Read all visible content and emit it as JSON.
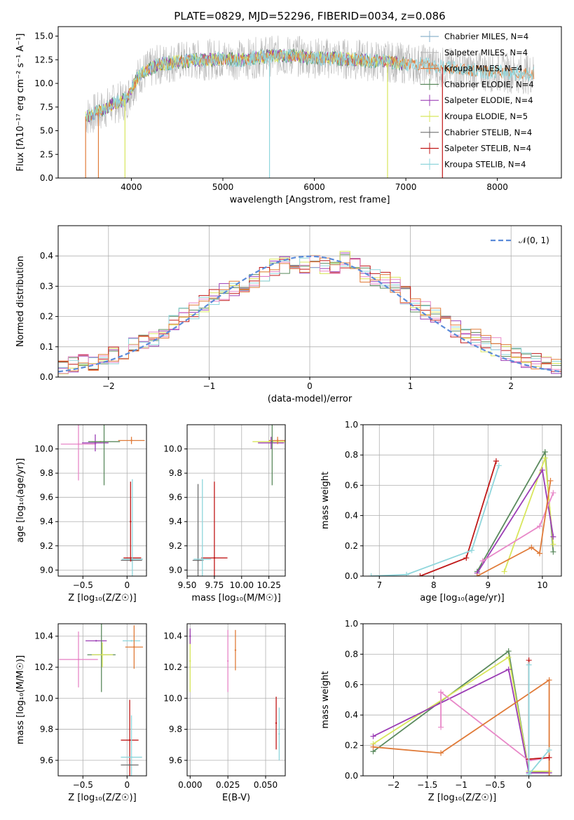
{
  "figure_title": "PLATE=0829, MJD=52296, FIBERID=0034, z=0.086",
  "colors": {
    "chabrier_miles": "#8eb3cc",
    "salpeter_miles": "#b8b8b8",
    "kroupa_miles": "#e07b39",
    "chabrier_elodie": "#5b8a5e",
    "salpeter_elodie": "#9b3db5",
    "kroupa_elodie": "#d8e65c",
    "chabrier_stelib": "#6e6e6e",
    "salpeter_stelib": "#c01818",
    "kroupa_stelib": "#8fd6dc",
    "salpeter_stelib_alt": "#e888c8",
    "gaussian": "#5b8bd9",
    "grid": "#b0b0b0"
  },
  "chart_data": [
    {
      "type": "line",
      "title": "PLATE=0829, MJD=52296, FIBERID=0034, z=0.086",
      "xlabel": "wavelength [Angstrom, rest frame]",
      "ylabel": "Flux [fλ10⁻¹⁷ erg cm⁻² s⁻¹ A⁻¹]",
      "xlim": [
        3200,
        8700
      ],
      "ylim": [
        0,
        16
      ],
      "xticks": [
        4000,
        5000,
        6000,
        7000,
        8000
      ],
      "yticks": [
        0.0,
        2.5,
        5.0,
        7.5,
        10.0,
        12.5,
        15.0
      ],
      "grid": false,
      "legend": "upper-right",
      "legend_entries": [
        "Chabrier MILES, N_SSP=4",
        "Salpeter MILES, N_SSP=4",
        "Kroupa MILES, N_SSP=4",
        "Chabrier ELODIE, N_SSP=4",
        "Salpeter ELODIE, N_SSP=4",
        "Kroupa ELODIE, N_SSP=5",
        "Chabrier STELIB, N_SSP=4",
        "Salpeter STELIB, N_SSP=4",
        "Kroupa STELIB, N_SSP=4"
      ],
      "spectrum_continuum": {
        "x": [
          3500,
          3650,
          3800,
          3950,
          4000,
          4100,
          4300,
          4500,
          4800,
          5000,
          5200,
          5500,
          5800,
          6000,
          6300,
          6600,
          6800,
          7000,
          7200,
          7400,
          7600,
          7800,
          8000,
          8200,
          8400
        ],
        "y": [
          6.5,
          7.0,
          7.8,
          8.3,
          9.5,
          11.0,
          12.0,
          12.3,
          12.5,
          12.6,
          12.5,
          12.9,
          12.9,
          12.7,
          12.6,
          12.4,
          12.3,
          12.1,
          12.0,
          11.7,
          11.5,
          11.3,
          11.2,
          11.1,
          11.0
        ]
      },
      "spikes_to_zero": [
        3500,
        3640,
        3930,
        5510,
        6800,
        7400
      ]
    },
    {
      "type": "bar",
      "xlabel": "(data-model)/error",
      "ylabel": "Normed distribution",
      "xlim": [
        -2.5,
        2.5
      ],
      "ylim": [
        0,
        0.5
      ],
      "xticks": [
        -2,
        -1,
        0,
        1,
        2
      ],
      "yticks": [
        0.0,
        0.1,
        0.2,
        0.3,
        0.4
      ],
      "grid": true,
      "legend": "upper-right",
      "legend_entries": [
        "𝒩(0, 1)"
      ],
      "bin_width": 0.1,
      "series_note": "step histograms, one per model",
      "histogram_bin_centers": [
        -2.45,
        -2.35,
        -2.25,
        -2.15,
        -2.05,
        -1.95,
        -1.85,
        -1.75,
        -1.65,
        -1.55,
        -1.45,
        -1.35,
        -1.25,
        -1.15,
        -1.05,
        -0.95,
        -0.85,
        -0.75,
        -0.65,
        -0.55,
        -0.45,
        -0.35,
        -0.25,
        -0.15,
        -0.05,
        0.05,
        0.15,
        0.25,
        0.35,
        0.45,
        0.55,
        0.65,
        0.75,
        0.85,
        0.95,
        1.05,
        1.15,
        1.25,
        1.35,
        1.45,
        1.55,
        1.65,
        1.75,
        1.85,
        1.95,
        2.05,
        2.15,
        2.25,
        2.35,
        2.45
      ],
      "histogram_typical_values": [
        0.04,
        0.04,
        0.05,
        0.05,
        0.06,
        0.07,
        0.08,
        0.1,
        0.12,
        0.13,
        0.15,
        0.18,
        0.2,
        0.22,
        0.24,
        0.26,
        0.28,
        0.29,
        0.31,
        0.32,
        0.34,
        0.36,
        0.37,
        0.38,
        0.37,
        0.38,
        0.37,
        0.37,
        0.39,
        0.37,
        0.34,
        0.33,
        0.32,
        0.3,
        0.27,
        0.24,
        0.22,
        0.2,
        0.18,
        0.16,
        0.14,
        0.13,
        0.11,
        0.1,
        0.08,
        0.07,
        0.06,
        0.05,
        0.04,
        0.04
      ],
      "gaussian": {
        "mu": 0,
        "sigma": 1
      }
    },
    {
      "type": "scatter",
      "xlabel": "Z [log₁₀(Z/Z☉)]",
      "ylabel": "age [log₁₀(age/yr)]",
      "xlim": [
        -0.78,
        0.22
      ],
      "ylim": [
        8.95,
        10.2
      ],
      "xticks": [
        -0.5,
        0.0
      ],
      "yticks": [
        9.0,
        9.2,
        9.4,
        9.6,
        9.8,
        10.0
      ],
      "grid": true,
      "points": [
        {
          "x": -0.55,
          "y": 10.04,
          "xerr": 0.2,
          "yerr": 0.3,
          "c": "salpeter_stelib_alt"
        },
        {
          "x": -0.3,
          "y": 10.06,
          "xerr": 0.1,
          "yerr": 0.0,
          "c": "kroupa_elodie"
        },
        {
          "x": -0.36,
          "y": 10.05,
          "xerr": 0.15,
          "yerr": 0.07,
          "c": "salpeter_elodie"
        },
        {
          "x": -0.26,
          "y": 10.06,
          "xerr": 0.18,
          "yerr": 0.36,
          "c": "chabrier_elodie"
        },
        {
          "x": 0.05,
          "y": 10.07,
          "xerr": 0.15,
          "yerr": 0.03,
          "c": "kroupa_miles"
        },
        {
          "x": 0.06,
          "y": 9.1,
          "xerr": 0.1,
          "yerr": 0.0,
          "c": "salpeter_stelib"
        },
        {
          "x": 0.06,
          "y": 9.09,
          "xerr": 0.12,
          "yerr": 0.66,
          "c": "kroupa_stelib"
        },
        {
          "x": 0.05,
          "y": 9.08,
          "xerr": 0.12,
          "yerr": 0.0,
          "c": "chabrier_stelib"
        },
        {
          "x": 0.04,
          "y": 9.4,
          "xerr": 0.0,
          "yerr": 0.33,
          "c": "salpeter_stelib"
        }
      ]
    },
    {
      "type": "scatter",
      "xlabel": "mass [log₁₀(M/M☉)]",
      "ylabel": "",
      "xlim": [
        9.5,
        10.4
      ],
      "ylim": [
        8.95,
        10.2
      ],
      "xticks": [
        9.5,
        9.75,
        10.0,
        10.25
      ],
      "ytick_labels": [
        "9.0",
        "9.2",
        "9.4",
        "9.6",
        "9.8",
        "10.0"
      ],
      "xtick_labels": [
        "9.50",
        "9.75",
        "10.00",
        "10.25"
      ],
      "grid": true,
      "points": [
        {
          "x": 10.25,
          "y": 10.06,
          "xerr": 0.15,
          "yerr": 0.0,
          "c": "kroupa_elodie"
        },
        {
          "x": 10.27,
          "y": 10.05,
          "xerr": 0.12,
          "yerr": 0.05,
          "c": "salpeter_elodie"
        },
        {
          "x": 10.33,
          "y": 10.07,
          "xerr": 0.08,
          "yerr": 0.03,
          "c": "kroupa_miles"
        },
        {
          "x": 10.28,
          "y": 10.06,
          "xerr": 0.0,
          "yerr": 0.36,
          "c": "chabrier_elodie"
        },
        {
          "x": 9.6,
          "y": 9.08,
          "xerr": 0.05,
          "yerr": 0.63,
          "c": "chabrier_stelib"
        },
        {
          "x": 9.75,
          "y": 9.1,
          "xerr": 0.12,
          "yerr": 0.63,
          "c": "salpeter_stelib"
        },
        {
          "x": 9.64,
          "y": 9.09,
          "xerr": 0.08,
          "yerr": 0.66,
          "c": "kroupa_stelib"
        }
      ]
    },
    {
      "type": "line",
      "xlabel": "age [log₁₀(age/yr)]",
      "ylabel": "mass weight",
      "xlim": [
        6.7,
        10.35
      ],
      "ylim": [
        0,
        1.0
      ],
      "xticks": [
        7,
        8,
        9,
        10
      ],
      "yticks": [
        0.0,
        0.2,
        0.4,
        0.6,
        0.8,
        1.0
      ],
      "grid": true,
      "series": [
        {
          "c": "salpeter_stelib",
          "x": [
            7.75,
            8.6,
            9.15
          ],
          "y": [
            0.0,
            0.12,
            0.76
          ]
        },
        {
          "c": "kroupa_stelib",
          "x": [
            6.85,
            7.5,
            8.7,
            9.2
          ],
          "y": [
            0.0,
            0.01,
            0.17,
            0.73
          ]
        },
        {
          "c": "chabrier_elodie",
          "x": [
            8.8,
            10.05,
            10.2
          ],
          "y": [
            0.03,
            0.82,
            0.16
          ]
        },
        {
          "c": "kroupa_elodie",
          "x": [
            9.3,
            10.05,
            10.2
          ],
          "y": [
            0.03,
            0.78,
            0.21
          ]
        },
        {
          "c": "salpeter_elodie",
          "x": [
            8.8,
            10.0,
            10.2
          ],
          "y": [
            0.02,
            0.7,
            0.26
          ]
        },
        {
          "c": "salpeter_stelib_alt",
          "x": [
            8.9,
            9.95,
            10.2
          ],
          "y": [
            0.1,
            0.33,
            0.55
          ]
        },
        {
          "c": "kroupa_miles",
          "x": [
            8.8,
            9.8,
            9.95,
            10.15
          ],
          "y": [
            0.0,
            0.19,
            0.15,
            0.63
          ]
        }
      ]
    },
    {
      "type": "scatter",
      "xlabel": "Z [log₁₀(Z/Z☉)]",
      "ylabel": "mass [log₁₀(M/M☉)]",
      "xlim": [
        -0.78,
        0.22
      ],
      "ylim": [
        9.5,
        10.48
      ],
      "xticks": [
        -0.5,
        0.0
      ],
      "yticks": [
        9.6,
        9.8,
        10.0,
        10.2,
        10.4
      ],
      "grid": true,
      "points": [
        {
          "x": -0.55,
          "y": 10.25,
          "xerr": 0.22,
          "yerr": 0.18,
          "c": "salpeter_stelib_alt"
        },
        {
          "x": -0.35,
          "y": 10.37,
          "xerr": 0.12,
          "yerr": 0.0,
          "c": "salpeter_elodie"
        },
        {
          "x": -0.29,
          "y": 10.28,
          "xerr": 0.16,
          "yerr": 0.24,
          "c": "chabrier_elodie"
        },
        {
          "x": -0.28,
          "y": 10.28,
          "xerr": 0.12,
          "yerr": 0.08,
          "c": "kroupa_elodie"
        },
        {
          "x": 0.05,
          "y": 10.37,
          "xerr": 0.1,
          "yerr": 0.0,
          "c": "kroupa_stelib"
        },
        {
          "x": 0.08,
          "y": 10.33,
          "xerr": 0.1,
          "yerr": 0.14,
          "c": "kroupa_miles"
        },
        {
          "x": 0.03,
          "y": 9.73,
          "xerr": 0.1,
          "yerr": 0.26,
          "c": "salpeter_stelib"
        },
        {
          "x": 0.05,
          "y": 9.62,
          "xerr": 0.12,
          "yerr": 0.27,
          "c": "kroupa_stelib"
        },
        {
          "x": 0.03,
          "y": 9.57,
          "xerr": 0.1,
          "yerr": 0.0,
          "c": "chabrier_stelib"
        }
      ]
    },
    {
      "type": "scatter",
      "xlabel": "E(B-V)",
      "ylabel": "",
      "xlim": [
        -0.002,
        0.063
      ],
      "ylim": [
        9.5,
        10.48
      ],
      "xticks": [
        0.0,
        0.025,
        0.05
      ],
      "xtick_labels": [
        "0.000",
        "0.025",
        "0.050"
      ],
      "ytick_labels": [
        "9.6",
        "9.8",
        "10.0",
        "10.2",
        "10.4"
      ],
      "grid": true,
      "points": [
        {
          "x": 0.0,
          "y": 10.24,
          "yerr": 0.2,
          "c": "kroupa_elodie"
        },
        {
          "x": 0.0,
          "y": 10.4,
          "yerr": 0.05,
          "c": "salpeter_elodie"
        },
        {
          "x": 0.025,
          "y": 10.24,
          "yerr": 0.2,
          "c": "salpeter_stelib_alt"
        },
        {
          "x": 0.03,
          "y": 10.31,
          "yerr": 0.13,
          "c": "kroupa_miles"
        },
        {
          "x": 0.057,
          "y": 9.84,
          "yerr": 0.17,
          "c": "salpeter_stelib"
        },
        {
          "x": 0.059,
          "y": 9.77,
          "yerr": 0.17,
          "c": "kroupa_stelib"
        }
      ]
    },
    {
      "type": "line",
      "xlabel": "Z [log₁₀(Z/Z☉)]",
      "ylabel": "mass weight",
      "xlim": [
        -2.45,
        0.48
      ],
      "ylim": [
        0,
        1.0
      ],
      "xticks": [
        -2.0,
        -1.5,
        -1.0,
        -0.5,
        0.0
      ],
      "yticks": [
        0.0,
        0.2,
        0.4,
        0.6,
        0.8,
        1.0
      ],
      "grid": true,
      "series": [
        {
          "c": "chabrier_elodie",
          "x": [
            -2.3,
            -0.3,
            0.0,
            0.3
          ],
          "y": [
            0.16,
            0.82,
            0.03,
            0.02
          ]
        },
        {
          "c": "kroupa_elodie",
          "x": [
            -2.3,
            -0.3,
            0.0,
            0.3
          ],
          "y": [
            0.21,
            0.78,
            0.03,
            0.03
          ]
        },
        {
          "c": "salpeter_elodie",
          "x": [
            -2.3,
            -0.3,
            0.0,
            0.3
          ],
          "y": [
            0.26,
            0.7,
            0.02,
            0.02
          ]
        },
        {
          "c": "salpeter_stelib_alt",
          "x": [
            -1.3,
            -1.3,
            0.0,
            0.3
          ],
          "y": [
            0.32,
            0.55,
            0.1,
            0.12
          ]
        },
        {
          "c": "kroupa_miles",
          "x": [
            -2.3,
            -1.3,
            0.3,
            0.3
          ],
          "y": [
            0.19,
            0.15,
            0.63,
            0.0
          ]
        },
        {
          "c": "salpeter_stelib",
          "x": [
            0.0,
            0.0,
            0.3
          ],
          "y": [
            0.76,
            0.11,
            0.12
          ]
        },
        {
          "c": "kroupa_stelib",
          "x": [
            0.0,
            0.0,
            0.3
          ],
          "y": [
            0.73,
            0.01,
            0.17
          ]
        }
      ]
    }
  ]
}
